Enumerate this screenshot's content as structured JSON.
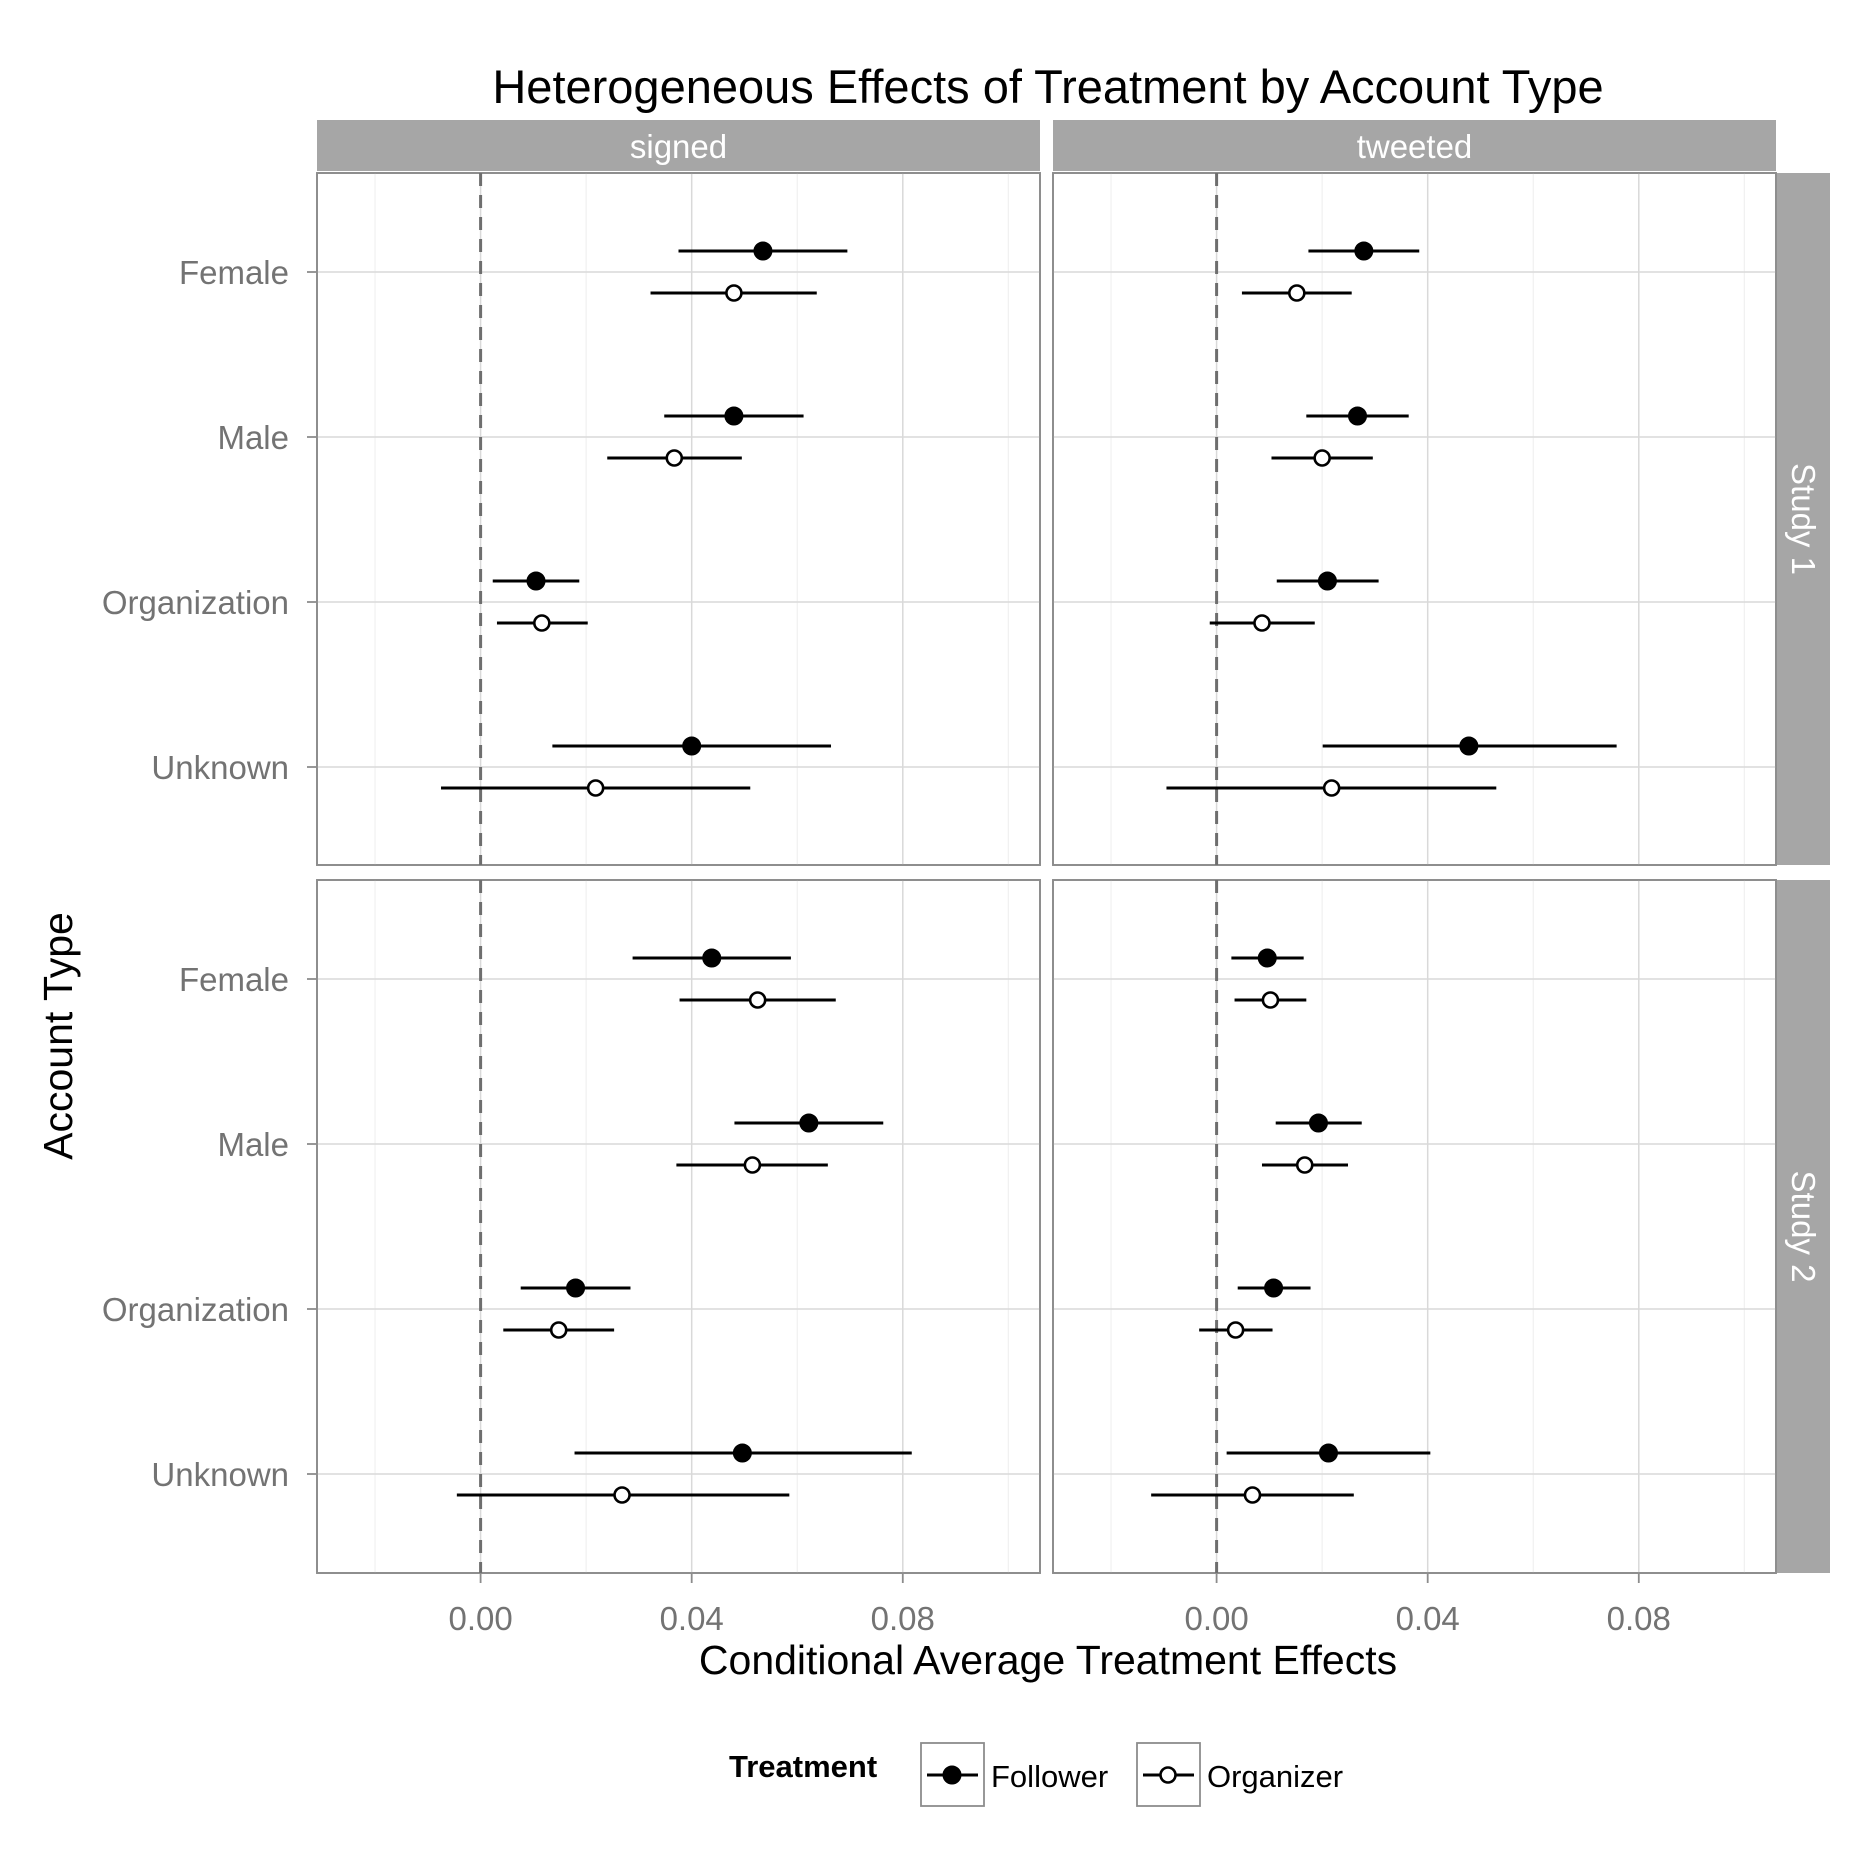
{
  "chart_data": {
    "type": "scatter",
    "subtype": "dot-and-whisker (faceted)",
    "title": "Heterogeneous Effects of Treatment by Account Type",
    "xlabel": "Conditional Average Treatment Effects",
    "ylabel": "Account Type",
    "xlim": [
      -0.031,
      0.106
    ],
    "x_ticks": [
      "0.00",
      "0.04",
      "0.08"
    ],
    "x_tick_values": [
      0.0,
      0.04,
      0.08
    ],
    "categories": [
      "Female",
      "Male",
      "Organization",
      "Unknown"
    ],
    "reference_line": {
      "x": 0,
      "style": "dashed"
    },
    "grid": true,
    "columns": [
      "signed",
      "tweeted"
    ],
    "rows": [
      "Study 1",
      "Study 2"
    ],
    "legend": {
      "title": "Treatment",
      "position": "bottom",
      "entries": [
        {
          "label": "Follower",
          "marker": "filled-circle"
        },
        {
          "label": "Organizer",
          "marker": "open-circle"
        }
      ]
    },
    "series": [
      {
        "name": "Follower",
        "marker": "filled-circle"
      },
      {
        "name": "Organizer",
        "marker": "open-circle"
      }
    ],
    "panels": [
      {
        "column": "signed",
        "row": "Study 1",
        "points": [
          {
            "category": "Female",
            "treatment": "Follower",
            "estimate": 0.0535,
            "lower": 0.0375,
            "upper": 0.0695
          },
          {
            "category": "Female",
            "treatment": "Organizer",
            "estimate": 0.048,
            "lower": 0.0322,
            "upper": 0.0637
          },
          {
            "category": "Male",
            "treatment": "Follower",
            "estimate": 0.048,
            "lower": 0.0348,
            "upper": 0.0612
          },
          {
            "category": "Male",
            "treatment": "Organizer",
            "estimate": 0.0367,
            "lower": 0.024,
            "upper": 0.0495
          },
          {
            "category": "Organization",
            "treatment": "Follower",
            "estimate": 0.0105,
            "lower": 0.0023,
            "upper": 0.0187
          },
          {
            "category": "Organization",
            "treatment": "Organizer",
            "estimate": 0.0116,
            "lower": 0.0031,
            "upper": 0.0203
          },
          {
            "category": "Unknown",
            "treatment": "Follower",
            "estimate": 0.04,
            "lower": 0.0136,
            "upper": 0.0664
          },
          {
            "category": "Unknown",
            "treatment": "Organizer",
            "estimate": 0.0218,
            "lower": -0.0075,
            "upper": 0.0511
          }
        ]
      },
      {
        "column": "tweeted",
        "row": "Study 1",
        "points": [
          {
            "category": "Female",
            "treatment": "Follower",
            "estimate": 0.0279,
            "lower": 0.0174,
            "upper": 0.0384
          },
          {
            "category": "Female",
            "treatment": "Organizer",
            "estimate": 0.0152,
            "lower": 0.0048,
            "upper": 0.0256
          },
          {
            "category": "Male",
            "treatment": "Follower",
            "estimate": 0.0267,
            "lower": 0.017,
            "upper": 0.0364
          },
          {
            "category": "Male",
            "treatment": "Organizer",
            "estimate": 0.02,
            "lower": 0.0104,
            "upper": 0.0296
          },
          {
            "category": "Organization",
            "treatment": "Follower",
            "estimate": 0.021,
            "lower": 0.0114,
            "upper": 0.0307
          },
          {
            "category": "Organization",
            "treatment": "Organizer",
            "estimate": 0.0086,
            "lower": -0.0013,
            "upper": 0.0186
          },
          {
            "category": "Unknown",
            "treatment": "Follower",
            "estimate": 0.0478,
            "lower": 0.0201,
            "upper": 0.0758
          },
          {
            "category": "Unknown",
            "treatment": "Organizer",
            "estimate": 0.0218,
            "lower": -0.0095,
            "upper": 0.053
          }
        ]
      },
      {
        "column": "signed",
        "row": "Study 2",
        "points": [
          {
            "category": "Female",
            "treatment": "Follower",
            "estimate": 0.0438,
            "lower": 0.0288,
            "upper": 0.0588
          },
          {
            "category": "Female",
            "treatment": "Organizer",
            "estimate": 0.0525,
            "lower": 0.0377,
            "upper": 0.0673
          },
          {
            "category": "Male",
            "treatment": "Follower",
            "estimate": 0.0622,
            "lower": 0.0481,
            "upper": 0.0763
          },
          {
            "category": "Male",
            "treatment": "Organizer",
            "estimate": 0.0515,
            "lower": 0.0371,
            "upper": 0.0658
          },
          {
            "category": "Organization",
            "treatment": "Follower",
            "estimate": 0.018,
            "lower": 0.0076,
            "upper": 0.0284
          },
          {
            "category": "Organization",
            "treatment": "Organizer",
            "estimate": 0.0148,
            "lower": 0.0043,
            "upper": 0.0253
          },
          {
            "category": "Unknown",
            "treatment": "Follower",
            "estimate": 0.0496,
            "lower": 0.0178,
            "upper": 0.0817
          },
          {
            "category": "Unknown",
            "treatment": "Organizer",
            "estimate": 0.0268,
            "lower": -0.0045,
            "upper": 0.0585
          }
        ]
      },
      {
        "column": "tweeted",
        "row": "Study 2",
        "points": [
          {
            "category": "Female",
            "treatment": "Follower",
            "estimate": 0.0096,
            "lower": 0.0028,
            "upper": 0.0165
          },
          {
            "category": "Female",
            "treatment": "Organizer",
            "estimate": 0.0102,
            "lower": 0.0034,
            "upper": 0.017
          },
          {
            "category": "Male",
            "treatment": "Follower",
            "estimate": 0.0193,
            "lower": 0.0112,
            "upper": 0.0275
          },
          {
            "category": "Male",
            "treatment": "Organizer",
            "estimate": 0.0167,
            "lower": 0.0086,
            "upper": 0.0249
          },
          {
            "category": "Organization",
            "treatment": "Follower",
            "estimate": 0.0108,
            "lower": 0.004,
            "upper": 0.0178
          },
          {
            "category": "Organization",
            "treatment": "Organizer",
            "estimate": 0.0036,
            "lower": -0.0033,
            "upper": 0.0106
          },
          {
            "category": "Unknown",
            "treatment": "Follower",
            "estimate": 0.0212,
            "lower": 0.0019,
            "upper": 0.0405
          },
          {
            "category": "Unknown",
            "treatment": "Organizer",
            "estimate": 0.0068,
            "lower": -0.0124,
            "upper": 0.026
          }
        ]
      }
    ]
  }
}
